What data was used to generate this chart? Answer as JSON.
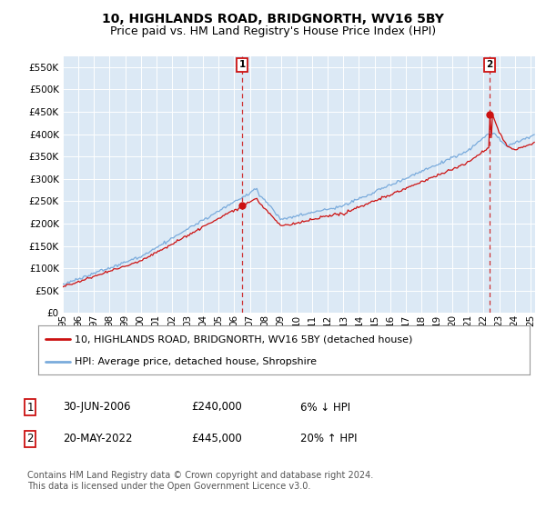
{
  "title": "10, HIGHLANDS ROAD, BRIDGNORTH, WV16 5BY",
  "subtitle": "Price paid vs. HM Land Registry's House Price Index (HPI)",
  "ylabel_ticks": [
    "£0",
    "£50K",
    "£100K",
    "£150K",
    "£200K",
    "£250K",
    "£300K",
    "£350K",
    "£400K",
    "£450K",
    "£500K",
    "£550K"
  ],
  "ytick_values": [
    0,
    50000,
    100000,
    150000,
    200000,
    250000,
    300000,
    350000,
    400000,
    450000,
    500000,
    550000
  ],
  "ylim": [
    0,
    575000
  ],
  "xlim_start": 1995.0,
  "xlim_end": 2025.3,
  "background_color": "#ffffff",
  "plot_bg_color": "#dce9f5",
  "grid_color": "#ffffff",
  "hpi_color": "#7aabdc",
  "price_color": "#cc1111",
  "transaction1_date": 2006.5,
  "transaction1_price": 240000,
  "transaction2_date": 2022.38,
  "transaction2_price": 445000,
  "legend_line1": "10, HIGHLANDS ROAD, BRIDGNORTH, WV16 5BY (detached house)",
  "legend_line2": "HPI: Average price, detached house, Shropshire",
  "table_row1_num": "1",
  "table_row1_date": "30-JUN-2006",
  "table_row1_price": "£240,000",
  "table_row1_hpi": "6% ↓ HPI",
  "table_row2_num": "2",
  "table_row2_date": "20-MAY-2022",
  "table_row2_price": "£445,000",
  "table_row2_hpi": "20% ↑ HPI",
  "footnote": "Contains HM Land Registry data © Crown copyright and database right 2024.\nThis data is licensed under the Open Government Licence v3.0.",
  "title_fontsize": 10,
  "subtitle_fontsize": 9,
  "tick_fontsize": 7.5,
  "legend_fontsize": 8,
  "table_fontsize": 8.5,
  "footnote_fontsize": 7
}
